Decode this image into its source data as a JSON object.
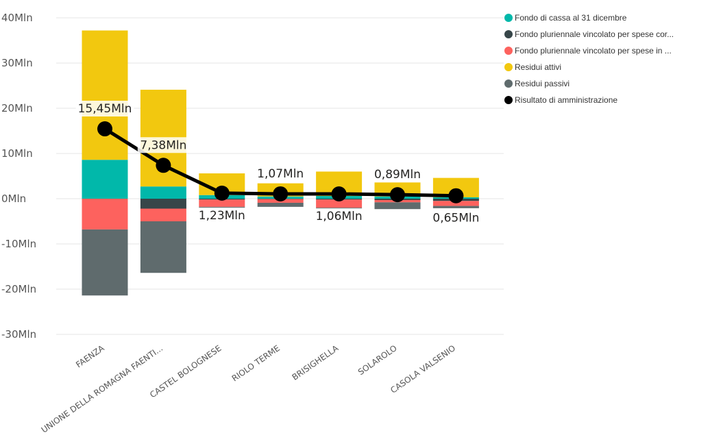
{
  "chart_data": {
    "type": "bar",
    "stacked": true,
    "categories": [
      "FAENZA",
      "UNIONE DELLA ROMAGNA FAENTI...",
      "CASTEL BOLOGNESE",
      "RIOLO TERME",
      "BRISIGHELLA",
      "SOLAROLO",
      "CASOLA VALSENIO"
    ],
    "ylim": [
      -30,
      40
    ],
    "yticks": [
      40,
      30,
      20,
      10,
      0,
      -10,
      -20,
      -30
    ],
    "ytick_labels": [
      "40Mln",
      "30Mln",
      "20Mln",
      "10Mln",
      "0Mln",
      "-10Mln",
      "-20Mln",
      "-30Mln"
    ],
    "grid": true,
    "legend_position": "top-right",
    "series": [
      {
        "name": "Fondo di cassa al 31 dicembre",
        "color": "#01B8AA",
        "values": [
          8.6,
          2.7,
          0.8,
          0.5,
          0.6,
          0.5,
          0.3
        ]
      },
      {
        "name": "Fondo pluriennale vincolato per spese cor...",
        "color": "#374649",
        "values": [
          0,
          -2.2,
          -0.2,
          -0.1,
          -0.2,
          -0.3,
          -0.5
        ]
      },
      {
        "name": "Fondo pluriennale vincolato per spese in ...",
        "color": "#FD625E",
        "values": [
          -6.8,
          -2.8,
          -1.6,
          -0.8,
          -1.8,
          -0.5,
          -1.1
        ]
      },
      {
        "name": "Residui attivi",
        "color": "#F2C80F",
        "values": [
          28.6,
          21.4,
          4.8,
          2.9,
          5.4,
          3.1,
          4.3
        ]
      },
      {
        "name": "Residui passivi",
        "color": "#5F6B6D",
        "values": [
          -14.6,
          -11.4,
          -0.3,
          -0.9,
          -0.3,
          -1.5,
          -0.5
        ]
      }
    ],
    "line_series": {
      "name": "Risultato di amministrazione",
      "color": "#000000",
      "values": [
        15.45,
        7.38,
        1.23,
        1.07,
        1.06,
        0.89,
        0.65
      ],
      "labels": [
        "15,45Mln",
        "7,38Mln",
        "1,23Mln",
        "1,07Mln",
        "1,06Mln",
        "0,89Mln",
        "0,65Mln"
      ],
      "label_side": [
        "above",
        "above",
        "below",
        "above",
        "below",
        "above",
        "below"
      ]
    }
  }
}
